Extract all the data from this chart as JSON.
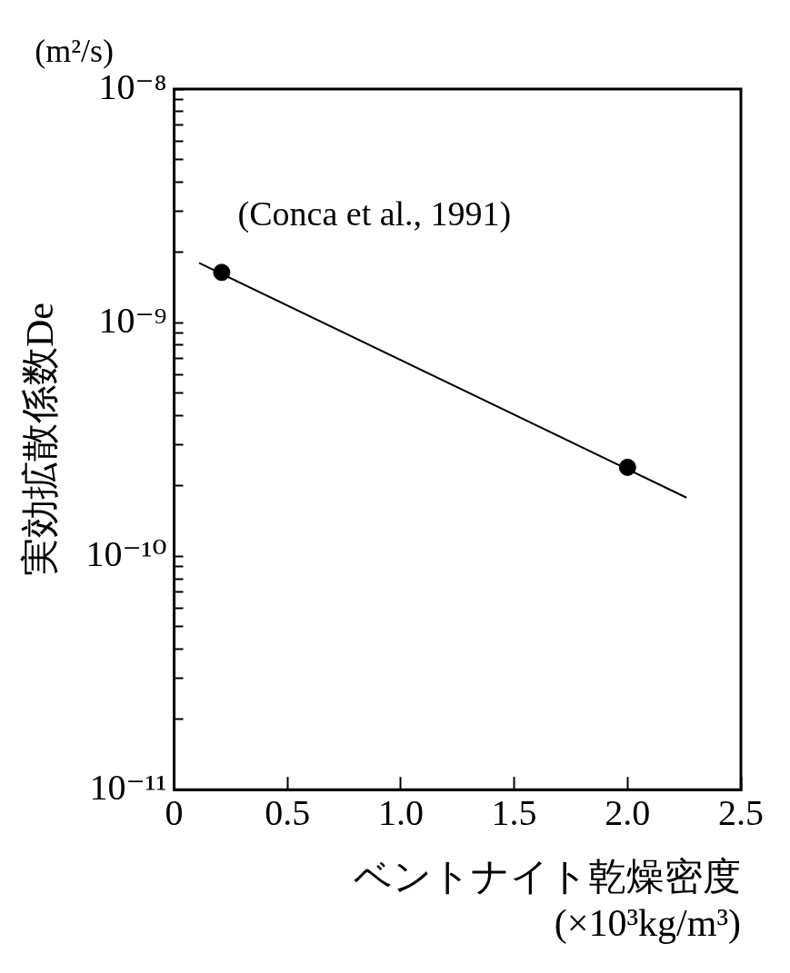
{
  "chart_data": {
    "type": "scatter",
    "xlabel": "ベントナイト乾燥密度 (×10³kg/m³)",
    "ylabel": "実効拡散係数De",
    "annotations": [
      "(Conca et al., 1991)",
      "(m²/s)"
    ],
    "series": [
      {
        "color": "#000000",
        "marker": "circle",
        "x": [
          0.21,
          2.0
        ],
        "values": [
          1.64e-09,
          2.4e-10
        ]
      },
      {
        "type": "line",
        "color": "#000000",
        "marker": "none",
        "line_style": "solid",
        "x": [
          0.11,
          2.26
        ],
        "values": [
          1.8e-09,
          1.78e-10
        ]
      }
    ],
    "log": "y",
    "xlim": [
      0,
      2.5
    ],
    "xticks": [
      0,
      0.5,
      {
        "value": 1,
        "label": "1.0"
      },
      1.5,
      {
        "value": 2,
        "label": "2.0"
      },
      2.5
    ],
    "ylim": [
      1e-11,
      1e-08
    ],
    "yticks": [
      {
        "value": 1e-11,
        "label": "10⁻¹¹"
      },
      {
        "value": 2e-11,
        "label": null
      },
      {
        "value": 3e-11,
        "label": null
      },
      {
        "value": 4e-11,
        "label": null
      },
      {
        "value": 5e-11,
        "label": null
      },
      {
        "value": 6e-11,
        "label": null
      },
      {
        "value": 7e-11,
        "label": null
      },
      {
        "value": 8e-11,
        "label": null
      },
      {
        "value": 9e-11,
        "label": null
      },
      {
        "value": 1e-10,
        "label": "10⁻¹⁰"
      },
      {
        "value": 2e-10,
        "label": null
      },
      {
        "value": 3e-10,
        "label": null
      },
      {
        "value": 4e-10,
        "label": null
      },
      {
        "value": 5e-10,
        "label": null
      },
      {
        "value": 6e-10,
        "label": null
      },
      {
        "value": 7e-10,
        "label": null
      },
      {
        "value": 8e-10,
        "label": null
      },
      {
        "value": 9e-10,
        "label": null
      },
      {
        "value": 1e-09,
        "label": "10⁻⁹"
      },
      {
        "value": 2e-09,
        "label": null
      },
      {
        "value": 3e-09,
        "label": null
      },
      {
        "value": 4e-09,
        "label": null
      },
      {
        "value": 5e-09,
        "label": null
      },
      {
        "value": 6e-09,
        "label": null
      },
      {
        "value": 7e-09,
        "label": null
      },
      {
        "value": 8e-09,
        "label": null
      },
      {
        "value": 9e-09,
        "label": null
      },
      {
        "value": 1e-08,
        "label": "10⁻⁸"
      }
    ],
    "grid": false,
    "legend": false
  }
}
